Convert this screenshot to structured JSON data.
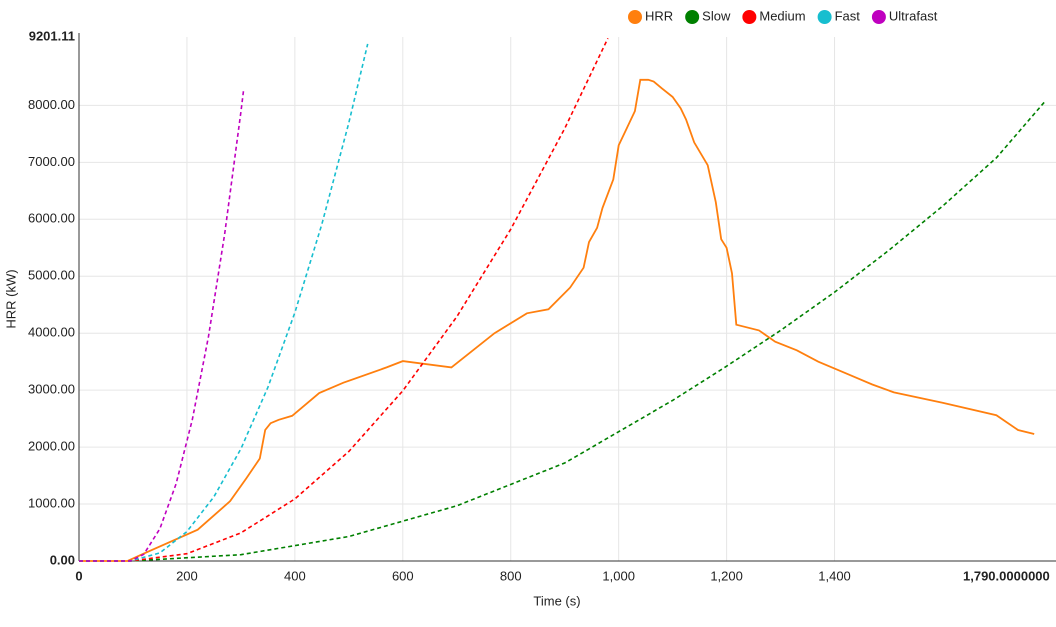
{
  "chart_data": {
    "type": "line",
    "x_label": "Time (s)",
    "y_label": "HRR (kW)",
    "xlim": [
      0,
      1790
    ],
    "ylim": [
      0,
      9201.11
    ],
    "xticks": [
      0,
      200,
      400,
      600,
      800,
      {
        "value": 1000,
        "label": "1,000"
      },
      {
        "value": 1200,
        "label": "1,200"
      },
      {
        "value": 1400,
        "label": "1,400"
      },
      {
        "value": 1790,
        "label": "1,790.0000000"
      }
    ],
    "yticks": [
      {
        "value": 0,
        "label": "0.00"
      },
      {
        "value": 1000,
        "label": "1000.00"
      },
      {
        "value": 2000,
        "label": "2000.00"
      },
      {
        "value": 3000,
        "label": "3000.00"
      },
      {
        "value": 4000,
        "label": "4000.00"
      },
      {
        "value": 5000,
        "label": "5000.00"
      },
      {
        "value": 6000,
        "label": "6000.00"
      },
      {
        "value": 7000,
        "label": "7000.00"
      },
      {
        "value": 8000,
        "label": "8000.00"
      },
      {
        "value": 9201.11,
        "label": "9201.11"
      }
    ],
    "grid": true,
    "legend": "top-right",
    "series": [
      {
        "name": "HRR",
        "color": "#ff7f0e",
        "dashed": false,
        "x": [
          0,
          90,
          120,
          220,
          280,
          310,
          335,
          345,
          355,
          370,
          395,
          420,
          445,
          490,
          570,
          600,
          690,
          770,
          830,
          870,
          910,
          935,
          945,
          960,
          970,
          990,
          1000,
          1015,
          1030,
          1040,
          1055,
          1065,
          1080,
          1100,
          1115,
          1125,
          1140,
          1165,
          1180,
          1190,
          1200,
          1210,
          1218,
          1260,
          1290,
          1330,
          1370,
          1420,
          1470,
          1510,
          1600,
          1700,
          1740,
          1770
        ],
        "values": [
          0,
          0,
          130,
          550,
          1050,
          1450,
          1800,
          2300,
          2420,
          2480,
          2550,
          2750,
          2950,
          3130,
          3400,
          3510,
          3400,
          4000,
          4350,
          4420,
          4800,
          5150,
          5600,
          5850,
          6200,
          6700,
          7300,
          7600,
          7900,
          8450,
          8450,
          8420,
          8300,
          8150,
          7950,
          7750,
          7350,
          6950,
          6300,
          5650,
          5500,
          5050,
          4150,
          4050,
          3850,
          3700,
          3500,
          3300,
          3100,
          2960,
          2780,
          2560,
          2300,
          2230
        ]
      },
      {
        "name": "Slow",
        "color": "#008000",
        "dashed": true,
        "x": [
          0,
          95,
          300,
          500,
          700,
          900,
          1000,
          1100,
          1200,
          1300,
          1400,
          1500,
          1600,
          1700,
          1790
        ],
        "values": [
          0,
          0,
          110,
          430,
          970,
          1720,
          2270,
          2820,
          3420,
          4050,
          4720,
          5450,
          6230,
          7080,
          8070
        ]
      },
      {
        "name": "Medium",
        "color": "#ff0000",
        "dashed": true,
        "x": [
          0,
          95,
          200,
          300,
          400,
          500,
          600,
          700,
          800,
          900,
          980
        ],
        "values": [
          0,
          0,
          129,
          493,
          1090,
          1922,
          2989,
          4290,
          5825,
          7595,
          9179
        ]
      },
      {
        "name": "Fast",
        "color": "#17becf",
        "dashed": true,
        "x": [
          0,
          95,
          150,
          200,
          250,
          300,
          350,
          400,
          450,
          500,
          535
        ],
        "values": [
          0,
          0,
          142,
          517,
          1127,
          1971,
          3050,
          4363,
          5911,
          7693,
          9080
        ]
      },
      {
        "name": "Ultrafast",
        "color": "#bf00bf",
        "dashed": true,
        "x": [
          0,
          95,
          120,
          150,
          180,
          210,
          240,
          270,
          300,
          305
        ],
        "values": [
          0,
          0,
          117,
          567,
          1355,
          2481,
          3944,
          5745,
          7884,
          8273
        ]
      }
    ]
  }
}
